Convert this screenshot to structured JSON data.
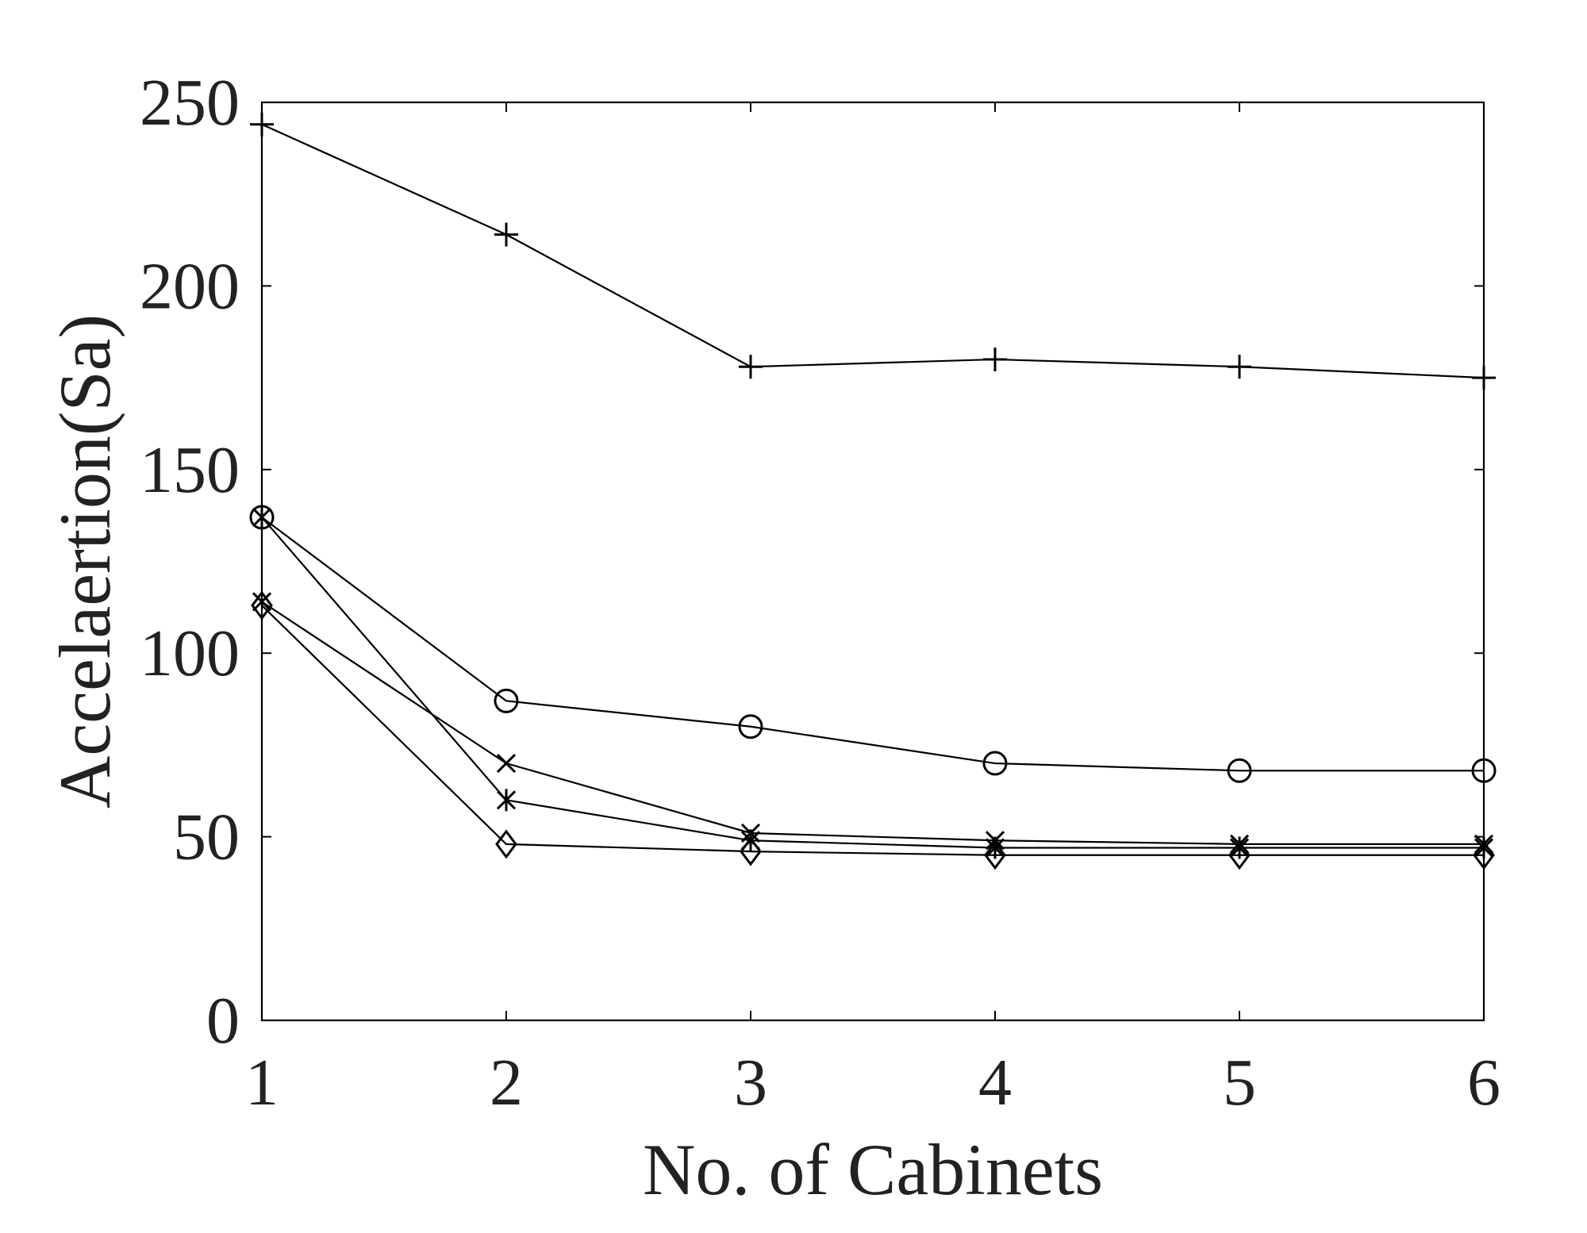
{
  "chart_data": {
    "type": "line",
    "title": "",
    "xlabel": "No. of Cabinets",
    "ylabel": "Accelaertion(Sa)",
    "x": [
      1,
      2,
      3,
      4,
      5,
      6
    ],
    "xticks": [
      "1",
      "2",
      "3",
      "4",
      "5",
      "6"
    ],
    "yticks": [
      "0",
      "50",
      "100",
      "150",
      "200",
      "250"
    ],
    "xlim": [
      1,
      6
    ],
    "ylim": [
      0,
      250
    ],
    "grid": false,
    "legend": "none",
    "line_color": "#000000",
    "series": [
      {
        "marker": "plus",
        "values": [
          244,
          214,
          178,
          180,
          178,
          175
        ]
      },
      {
        "marker": "circle",
        "values": [
          137,
          87,
          80,
          70,
          68,
          68
        ]
      },
      {
        "marker": "x",
        "values": [
          114,
          70,
          51,
          49,
          48,
          48
        ]
      },
      {
        "marker": "asterisk",
        "values": [
          137,
          60,
          49,
          47,
          47,
          47
        ]
      },
      {
        "marker": "diamond",
        "values": [
          113,
          48,
          46,
          45,
          45,
          45
        ]
      }
    ]
  }
}
